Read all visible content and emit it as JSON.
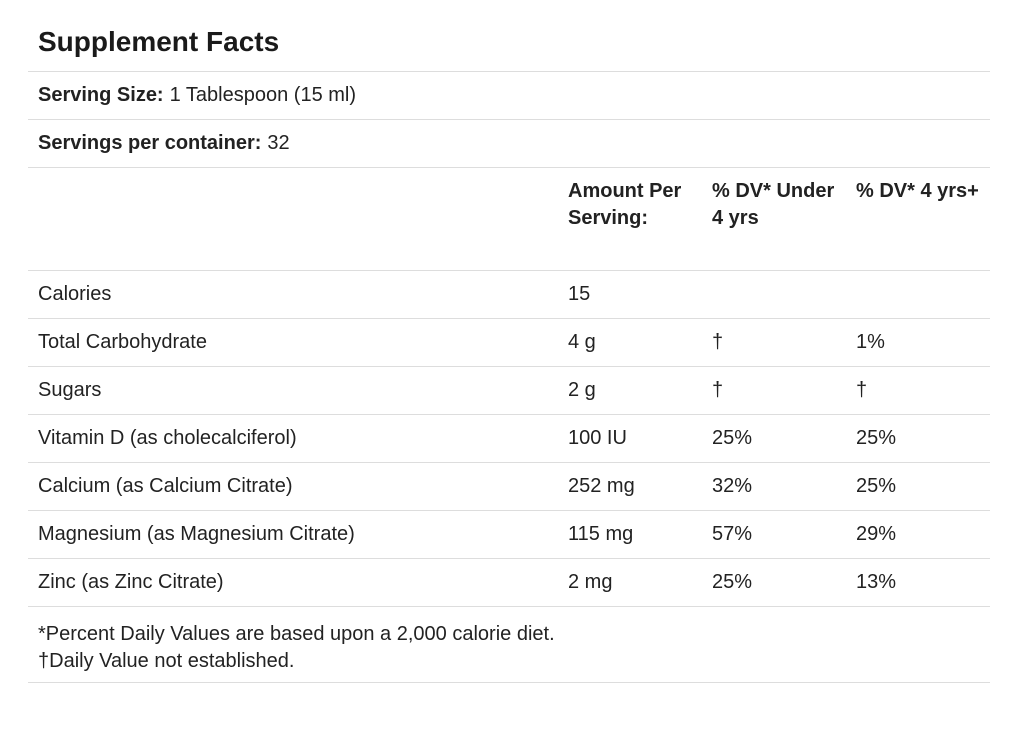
{
  "title": "Supplement Facts",
  "serving_size": {
    "label": "Serving Size:",
    "value": "1 Tablespoon (15 ml)"
  },
  "servings_per_container": {
    "label": "Servings per container:",
    "value": "32"
  },
  "headers": {
    "name": "",
    "amount": "Amount Per Serving:",
    "dv_under4": "% DV* Under 4 yrs",
    "dv_4plus": "% DV* 4 yrs+"
  },
  "rows": [
    {
      "name": "Calories",
      "amount": "15",
      "dv_under4": "",
      "dv_4plus": ""
    },
    {
      "name": "Total Carbohydrate",
      "amount": "4 g",
      "dv_under4": "†",
      "dv_4plus": "1%"
    },
    {
      "name": "Sugars",
      "amount": "2 g",
      "dv_under4": "†",
      "dv_4plus": "†"
    },
    {
      "name": "Vitamin D (as cholecalciferol)",
      "amount": "100 IU",
      "dv_under4": "25%",
      "dv_4plus": "25%"
    },
    {
      "name": "Calcium (as Calcium Citrate)",
      "amount": "252 mg",
      "dv_under4": "32%",
      "dv_4plus": "25%"
    },
    {
      "name": "Magnesium (as Magnesium Citrate)",
      "amount": "115 mg",
      "dv_under4": "57%",
      "dv_4plus": "29%"
    },
    {
      "name": "Zinc (as Zinc Citrate)",
      "amount": "2 mg",
      "dv_under4": "25%",
      "dv_4plus": "13%"
    }
  ],
  "footnotes": [
    "*Percent Daily Values are based upon a 2,000 calorie diet.",
    "†Daily Value not established."
  ]
}
